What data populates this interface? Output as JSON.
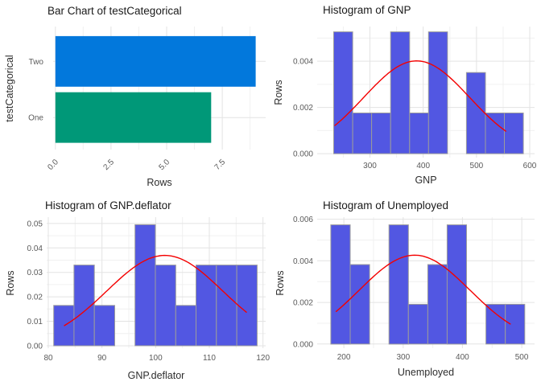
{
  "theme": {
    "background": "#FFFFFF",
    "grid_major": "#E3E3E3",
    "grid_minor": "#F0F0F0",
    "hist_fill": "#5257E2",
    "hist_stroke": "#9C9C9C",
    "curve_color": "#F40000",
    "title_color": "#1A1A1A",
    "axis_title_color": "#2E2E2E",
    "tick_color": "#5A5A5A",
    "bar_blue": "#0278DC",
    "bar_teal": "#009878"
  },
  "chart_data": [
    {
      "id": "bar-testCategorical",
      "type": "bar",
      "orientation": "horizontal",
      "title": "Bar Chart of testCategorical",
      "xlabel": "Rows",
      "ylabel": "testCategorical",
      "categories": [
        "Two",
        "One"
      ],
      "values": [
        9,
        7
      ],
      "bar_colors": [
        "#0278DC",
        "#009878"
      ],
      "x_ticks": [
        0,
        2.5,
        5,
        7.5
      ],
      "x_tick_labels": [
        "0.0",
        "2.5",
        "5.0",
        "7.5"
      ],
      "x_tick_angle": 45,
      "x_minor": [
        1.25,
        3.75,
        6.25,
        8.75
      ],
      "xlim": [
        -0.1,
        9.45
      ],
      "cat_lim": [
        0.43,
        2.62
      ],
      "bar_width": 0.9,
      "grid": true,
      "legend": "none"
    },
    {
      "id": "hist-GNP",
      "type": "histogram",
      "title": "Histogram of GNP",
      "xlabel": "GNP",
      "ylabel": "Rows",
      "bin_start": 232,
      "bin_width": 35.6,
      "counts": [
        3,
        1,
        1,
        3,
        1,
        3,
        0,
        2,
        1,
        1
      ],
      "densities": [
        0.00527,
        0.00176,
        0.00176,
        0.00527,
        0.00176,
        0.00527,
        0,
        0.00351,
        0.00176,
        0.00176
      ],
      "x_ticks": [
        300,
        400,
        500,
        600
      ],
      "x_tick_labels": [
        "300",
        "400",
        "500",
        "600"
      ],
      "y_ticks": [
        0,
        0.002,
        0.004
      ],
      "y_tick_labels": [
        "0.000",
        "0.002",
        "0.004"
      ],
      "x_minor": [
        250,
        350,
        450,
        550
      ],
      "y_minor": [
        0.001,
        0.003,
        0.005
      ],
      "xlim": [
        201,
        609
      ],
      "ylim": [
        -0.00017,
        0.0055
      ],
      "curve": {
        "shape": "normal",
        "mean": 387.7,
        "sd": 99.4,
        "from": 234.3,
        "to": 554.9,
        "peak": 0.004
      },
      "grid": true,
      "legend": "none"
    },
    {
      "id": "hist-GNP-deflator",
      "type": "histogram",
      "title": "Histogram of GNP.deflator",
      "xlabel": "GNP.deflator",
      "ylabel": "Rows",
      "bin_start": 81,
      "bin_width": 3.79,
      "counts": [
        1,
        2,
        1,
        0,
        3,
        2,
        1,
        2,
        2,
        2
      ],
      "densities": [
        0.0165,
        0.033,
        0.0165,
        0,
        0.0495,
        0.033,
        0.0165,
        0.033,
        0.033,
        0.033
      ],
      "x_ticks": [
        80,
        90,
        100,
        110,
        120
      ],
      "x_tick_labels": [
        "80",
        "90",
        "100",
        "110",
        "120"
      ],
      "y_ticks": [
        0,
        0.01,
        0.02,
        0.03,
        0.04,
        0.05
      ],
      "y_tick_labels": [
        "0.00",
        "0.01",
        "0.02",
        "0.03",
        "0.04",
        "0.05"
      ],
      "x_minor": [
        85,
        95,
        105,
        115
      ],
      "y_minor": [
        0.005,
        0.015,
        0.025,
        0.035,
        0.045
      ],
      "xlim": [
        79.7,
        120.5
      ],
      "ylim": [
        -0.001,
        0.0526
      ],
      "curve": {
        "shape": "normal",
        "mean": 101.7,
        "sd": 10.8,
        "from": 83,
        "to": 116.9,
        "peak": 0.037
      },
      "grid": true,
      "legend": "none"
    },
    {
      "id": "hist-Unemployed",
      "type": "histogram",
      "title": "Histogram of Unemployed",
      "xlabel": "Unemployed",
      "ylabel": "Rows",
      "bin_start": 178,
      "bin_width": 32.7,
      "counts": [
        3,
        2,
        0,
        3,
        1,
        2,
        3,
        0,
        1,
        1
      ],
      "densities": [
        0.00573,
        0.00382,
        0,
        0.00573,
        0.00191,
        0.00382,
        0.00573,
        0,
        0.00191,
        0.00191
      ],
      "x_ticks": [
        200,
        300,
        400,
        500
      ],
      "x_tick_labels": [
        "200",
        "300",
        "400",
        "500"
      ],
      "y_ticks": [
        0,
        0.002,
        0.004,
        0.006
      ],
      "y_tick_labels": [
        "0.000",
        "0.002",
        "0.004",
        "0.006"
      ],
      "x_minor": [
        250,
        350,
        450
      ],
      "y_minor": [
        0.001,
        0.003,
        0.005
      ],
      "xlim": [
        155,
        521.6
      ],
      "ylim": [
        -0.0002,
        0.0061
      ],
      "curve": {
        "shape": "normal",
        "mean": 319.3,
        "sd": 93.4,
        "from": 187,
        "to": 480.6,
        "peak": 0.0043
      },
      "grid": true,
      "legend": "none"
    }
  ]
}
